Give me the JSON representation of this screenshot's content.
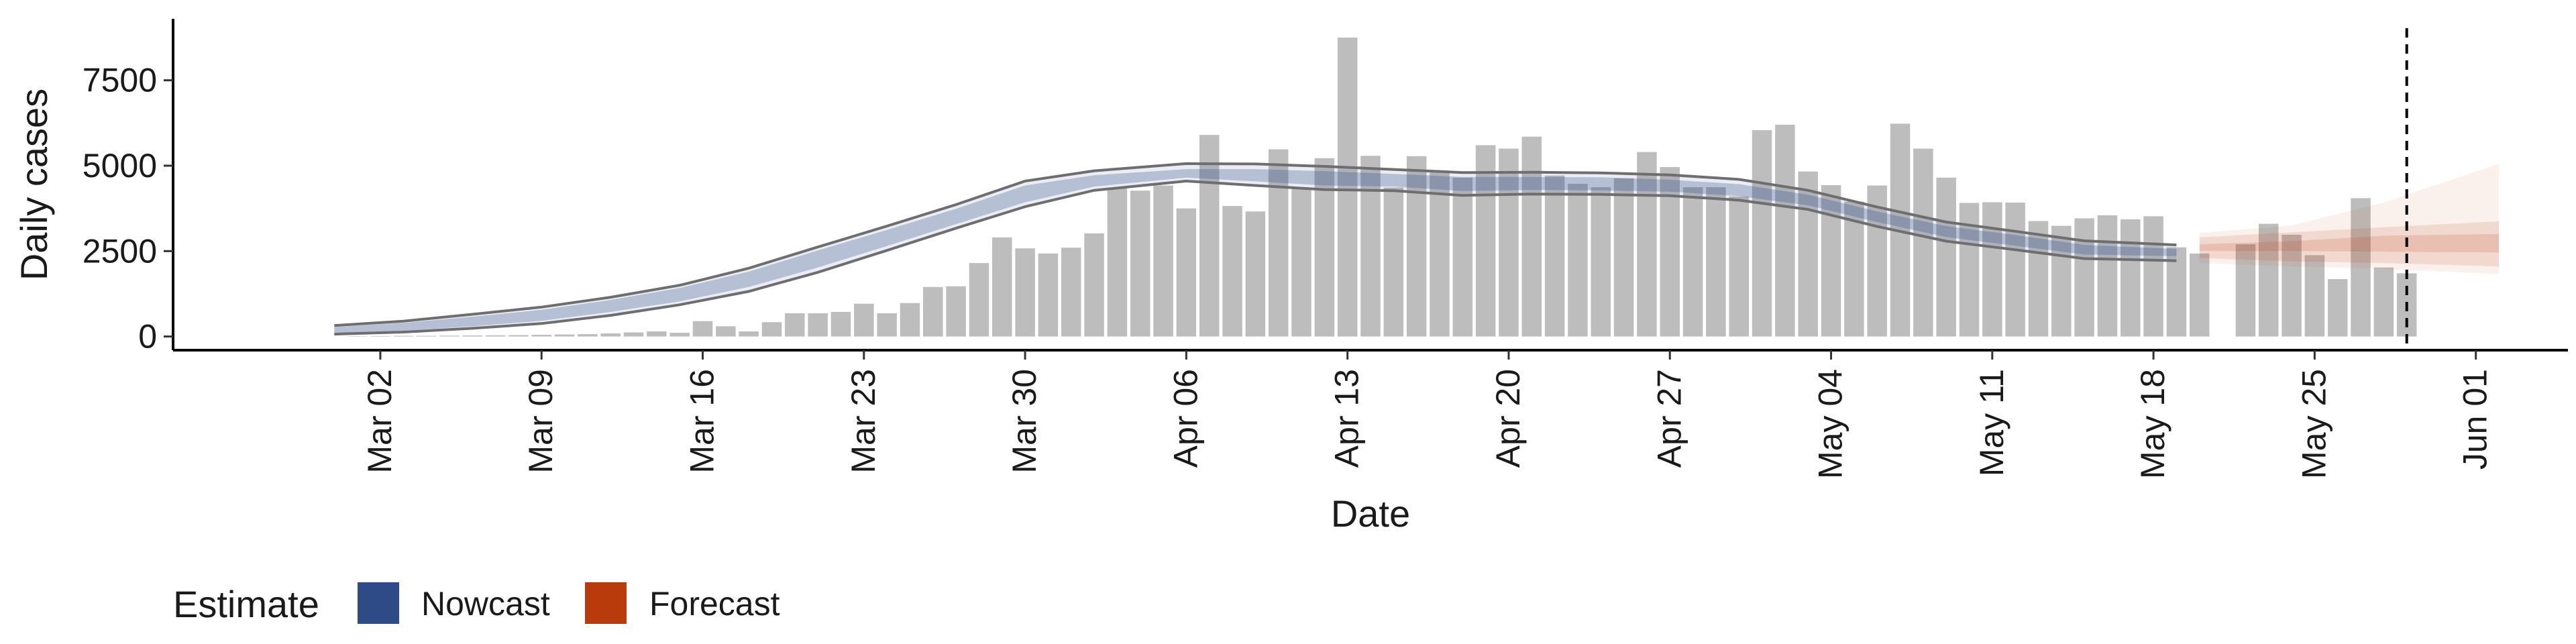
{
  "chart_data": {
    "type": "bar",
    "xlabel": "Date",
    "ylabel": "Daily cases",
    "xlim": [
      "2020-02-22",
      "2020-06-05"
    ],
    "ylim": [
      -400,
      9300
    ],
    "x_ticks": [
      {
        "date": "2020-03-02",
        "label": "Mar 02"
      },
      {
        "date": "2020-03-09",
        "label": "Mar 09"
      },
      {
        "date": "2020-03-16",
        "label": "Mar 16"
      },
      {
        "date": "2020-03-23",
        "label": "Mar 23"
      },
      {
        "date": "2020-03-30",
        "label": "Mar 30"
      },
      {
        "date": "2020-04-06",
        "label": "Apr 06"
      },
      {
        "date": "2020-04-13",
        "label": "Apr 13"
      },
      {
        "date": "2020-04-20",
        "label": "Apr 20"
      },
      {
        "date": "2020-04-27",
        "label": "Apr 27"
      },
      {
        "date": "2020-05-04",
        "label": "May 04"
      },
      {
        "date": "2020-05-11",
        "label": "May 11"
      },
      {
        "date": "2020-05-18",
        "label": "May 18"
      },
      {
        "date": "2020-05-25",
        "label": "May 25"
      },
      {
        "date": "2020-06-01",
        "label": "Jun 01"
      }
    ],
    "y_ticks": [
      {
        "value": 0,
        "label": "0"
      },
      {
        "value": 2500,
        "label": "2500"
      },
      {
        "value": 5000,
        "label": "5000"
      },
      {
        "value": 7500,
        "label": "7500"
      }
    ],
    "grid": false,
    "legend": {
      "position": "bottom-left",
      "title": "Estimate",
      "items": [
        {
          "label": "Nowcast",
          "color": "#2E4A87"
        },
        {
          "label": "Forecast",
          "color": "#B93A0B"
        }
      ]
    },
    "colors": {
      "bars": "#bdbdbd",
      "nowcast": "#2E4A87",
      "forecast": "#B93A0B",
      "interval_outline": "#6e6e6e",
      "reference_line": "#000000"
    },
    "series": [
      {
        "type": "bar",
        "x": [
          "2020-03-01",
          "2020-03-02",
          "2020-03-03",
          "2020-03-04",
          "2020-03-05",
          "2020-03-06",
          "2020-03-07",
          "2020-03-08",
          "2020-03-09",
          "2020-03-10",
          "2020-03-11",
          "2020-03-12",
          "2020-03-13",
          "2020-03-14",
          "2020-03-15",
          "2020-03-16",
          "2020-03-17",
          "2020-03-18",
          "2020-03-19",
          "2020-03-20",
          "2020-03-21",
          "2020-03-22",
          "2020-03-23",
          "2020-03-24",
          "2020-03-25",
          "2020-03-26",
          "2020-03-27",
          "2020-03-28",
          "2020-03-29",
          "2020-03-30",
          "2020-03-31",
          "2020-04-01",
          "2020-04-02",
          "2020-04-03",
          "2020-04-04",
          "2020-04-05",
          "2020-04-06",
          "2020-04-07",
          "2020-04-08",
          "2020-04-09",
          "2020-04-10",
          "2020-04-11",
          "2020-04-12",
          "2020-04-13",
          "2020-04-14",
          "2020-04-15",
          "2020-04-16",
          "2020-04-17",
          "2020-04-18",
          "2020-04-19",
          "2020-04-20",
          "2020-04-21",
          "2020-04-22",
          "2020-04-23",
          "2020-04-24",
          "2020-04-25",
          "2020-04-26",
          "2020-04-27",
          "2020-04-28",
          "2020-04-29",
          "2020-04-30",
          "2020-05-01",
          "2020-05-02",
          "2020-05-03",
          "2020-05-04",
          "2020-05-05",
          "2020-05-06",
          "2020-05-07",
          "2020-05-08",
          "2020-05-09",
          "2020-05-10",
          "2020-05-11",
          "2020-05-12",
          "2020-05-13",
          "2020-05-14",
          "2020-05-15",
          "2020-05-16",
          "2020-05-17",
          "2020-05-18",
          "2020-05-19",
          "2020-05-20",
          "2020-05-21",
          "2020-05-22",
          "2020-05-23",
          "2020-05-24",
          "2020-05-25",
          "2020-05-26",
          "2020-05-27",
          "2020-05-28",
          "2020-05-29"
        ],
        "values": [
          10,
          15,
          20,
          20,
          25,
          30,
          35,
          40,
          50,
          60,
          70,
          90,
          120,
          150,
          110,
          450,
          300,
          150,
          420,
          680,
          680,
          720,
          960,
          680,
          980,
          1450,
          1470,
          2150,
          2900,
          2580,
          2430,
          2600,
          3020,
          4350,
          4270,
          4420,
          3750,
          5900,
          3820,
          3660,
          5480,
          4350,
          5220,
          8750,
          5290,
          4360,
          5280,
          4800,
          4650,
          5600,
          5500,
          5850,
          4710,
          4470,
          4370,
          4630,
          5400,
          4960,
          4370,
          4370,
          4100,
          6040,
          6200,
          4830,
          4430,
          3950,
          4420,
          6230,
          5500,
          4650,
          3910,
          3930,
          3920,
          3380,
          3240,
          3460,
          3550,
          3430,
          3520,
          2610,
          2430,
          0,
          2700,
          3300,
          2980,
          2380,
          1680,
          4050,
          2020,
          1850
        ]
      },
      {
        "type": "ribbon",
        "name": "Nowcast",
        "x": [
          "2020-02-29",
          "2020-03-03",
          "2020-03-06",
          "2020-03-09",
          "2020-03-12",
          "2020-03-15",
          "2020-03-18",
          "2020-03-21",
          "2020-03-24",
          "2020-03-27",
          "2020-03-30",
          "2020-04-02",
          "2020-04-06",
          "2020-04-09",
          "2020-04-12",
          "2020-04-15",
          "2020-04-18",
          "2020-04-21",
          "2020-04-24",
          "2020-04-27",
          "2020-04-30",
          "2020-05-03",
          "2020-05-06",
          "2020-05-09",
          "2020-05-12",
          "2020-05-15",
          "2020-05-19"
        ],
        "lower": [
          100,
          170,
          300,
          460,
          720,
          1030,
          1450,
          2020,
          2650,
          3290,
          3930,
          4390,
          4650,
          4540,
          4420,
          4390,
          4260,
          4290,
          4280,
          4240,
          4110,
          3840,
          3350,
          2910,
          2660,
          2400,
          2350
        ],
        "upper": [
          280,
          400,
          580,
          780,
          1070,
          1420,
          1900,
          2520,
          3120,
          3740,
          4420,
          4720,
          4900,
          4900,
          4840,
          4760,
          4670,
          4670,
          4660,
          4590,
          4460,
          4150,
          3660,
          3230,
          2970,
          2680,
          2560
        ],
        "outer_lower": [
          70,
          130,
          240,
          380,
          620,
          930,
          1320,
          1880,
          2520,
          3170,
          3800,
          4280,
          4550,
          4420,
          4300,
          4270,
          4130,
          4170,
          4160,
          4120,
          3990,
          3720,
          3220,
          2790,
          2540,
          2280,
          2220
        ],
        "outer_upper": [
          320,
          450,
          650,
          860,
          1150,
          1500,
          2000,
          2620,
          3230,
          3860,
          4550,
          4850,
          5060,
          5050,
          4980,
          4890,
          4800,
          4810,
          4790,
          4730,
          4600,
          4280,
          3790,
          3350,
          3080,
          2800,
          2680
        ]
      },
      {
        "type": "ribbon",
        "name": "Forecast",
        "x": [
          "2020-05-20",
          "2020-05-24",
          "2020-05-28",
          "2020-06-02"
        ],
        "lower": [
          2500,
          2500,
          2480,
          2460
        ],
        "upper": [
          2700,
          2790,
          2950,
          3000
        ],
        "mid_lower": [
          2300,
          2200,
          2150,
          2050
        ],
        "mid_upper": [
          2900,
          3050,
          3200,
          3370
        ],
        "outer_lower": [
          2150,
          2050,
          1980,
          1830
        ],
        "outer_upper": [
          3030,
          3250,
          3920,
          5050
        ]
      }
    ],
    "annotations": [
      {
        "type": "vline",
        "x": "2020-05-29",
        "style": "dashed"
      }
    ]
  }
}
